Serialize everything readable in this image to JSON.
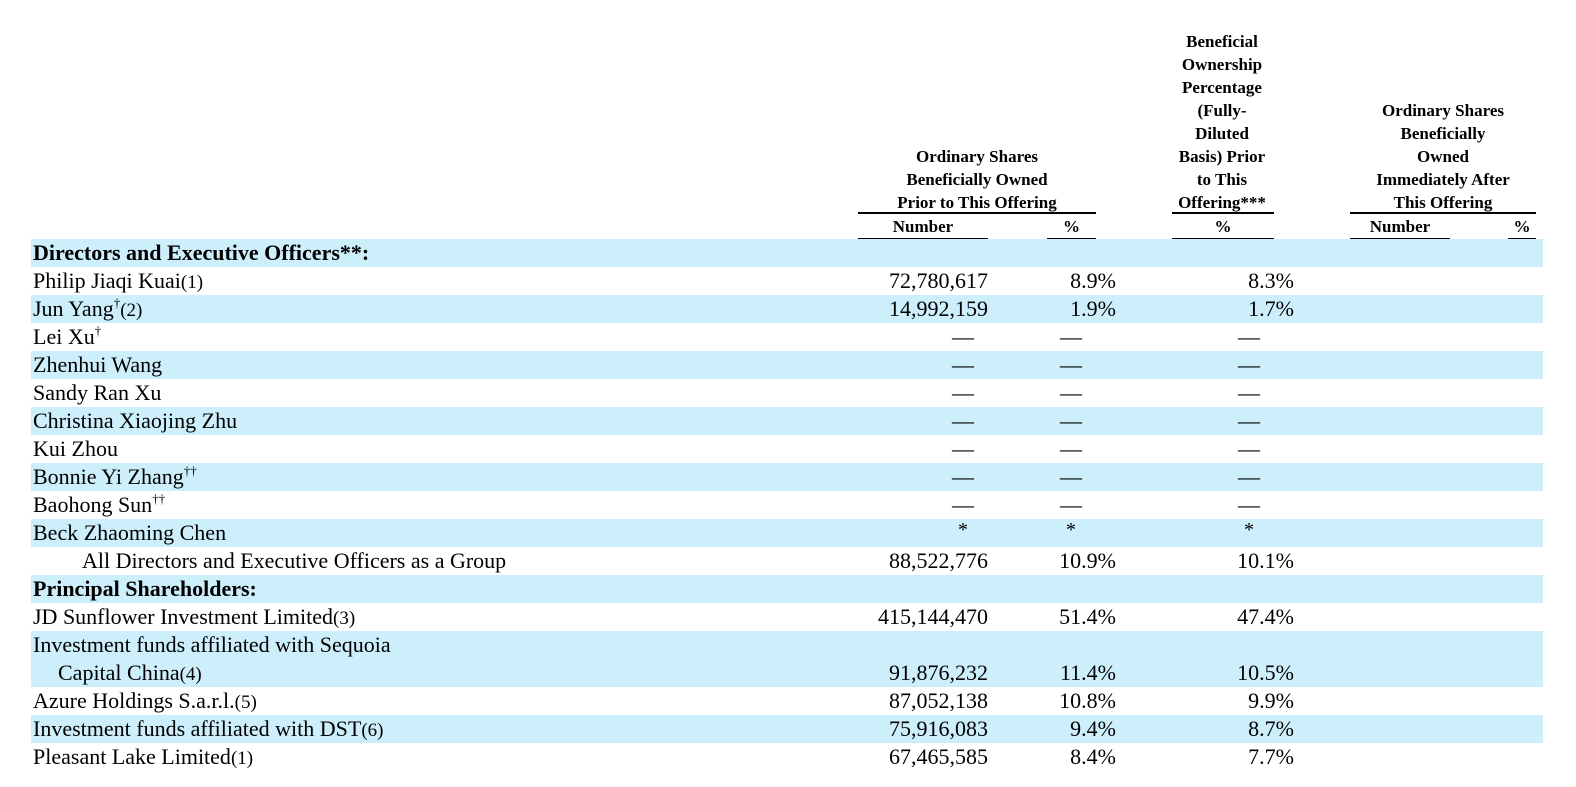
{
  "header": {
    "prior_group": [
      "Ordinary Shares",
      "Beneficially Owned",
      "Prior to This Offering"
    ],
    "prior_number": "Number",
    "prior_pct": "%",
    "fully_diluted": [
      "Beneficial",
      "Ownership",
      "Percentage",
      "(Fully-",
      "Diluted",
      "Basis) Prior",
      "to This",
      "Offering***"
    ],
    "fully_diluted_pct": "%",
    "after_group": [
      "Ordinary Shares",
      "Beneficially",
      "Owned",
      "Immediately After",
      "This Offering"
    ],
    "after_number": "Number",
    "after_pct": "%"
  },
  "rows": [
    {
      "label": "Directors and Executive Officers**:",
      "type": "section"
    },
    {
      "label": "Philip Jiaqi Kuai",
      "fn": "(1)",
      "number": "72,780,617",
      "pct": "8.9%",
      "pct_fd": "8.3%"
    },
    {
      "label": "Jun Yang",
      "sup": "†",
      "fn": "(2)",
      "number": "14,992,159",
      "pct": "1.9%",
      "pct_fd": "1.7%"
    },
    {
      "label": "Lei Xu",
      "sup": "†",
      "number": "—",
      "pct": "—",
      "pct_fd": "—"
    },
    {
      "label": "Zhenhui Wang",
      "number": "—",
      "pct": "—",
      "pct_fd": "—"
    },
    {
      "label": "Sandy Ran Xu",
      "number": "—",
      "pct": "—",
      "pct_fd": "—"
    },
    {
      "label": "Christina Xiaojing Zhu",
      "number": "—",
      "pct": "—",
      "pct_fd": "—"
    },
    {
      "label": "Kui Zhou",
      "number": "—",
      "pct": "—",
      "pct_fd": "—"
    },
    {
      "label": "Bonnie Yi Zhang",
      "sup": "††",
      "number": "—",
      "pct": "—",
      "pct_fd": "—"
    },
    {
      "label": "Baohong Sun",
      "sup": "††",
      "number": "—",
      "pct": "—",
      "pct_fd": "—"
    },
    {
      "label": "Beck Zhaoming Chen",
      "number": "*",
      "pct": "*",
      "pct_fd": "*"
    },
    {
      "label": "All Directors and Executive Officers as a Group",
      "indent": 1,
      "number": "88,522,776",
      "pct": "10.9%",
      "pct_fd": "10.1%"
    },
    {
      "label": "Principal Shareholders:",
      "type": "section"
    },
    {
      "label": "JD Sunflower Investment Limited",
      "fn": "(3)",
      "number": "415,144,470",
      "pct": "51.4%",
      "pct_fd": "47.4%"
    },
    {
      "label": "Investment funds affiliated with Sequoia",
      "cont": true
    },
    {
      "label": "Capital China",
      "fn": "(4)",
      "indent": 2,
      "number": "91,876,232",
      "pct": "11.4%",
      "pct_fd": "10.5%",
      "cont_of_prev": true
    },
    {
      "label": "Azure Holdings S.a.r.l.",
      "fn": "(5)",
      "number": "87,052,138",
      "pct": "10.8%",
      "pct_fd": "9.9%"
    },
    {
      "label": "Investment funds affiliated with DST",
      "fn": "(6)",
      "number": "75,916,083",
      "pct": "9.4%",
      "pct_fd": "8.7%"
    },
    {
      "label": "Pleasant Lake Limited",
      "fn": "(1)",
      "number": "67,465,585",
      "pct": "8.4%",
      "pct_fd": "7.7%"
    }
  ]
}
